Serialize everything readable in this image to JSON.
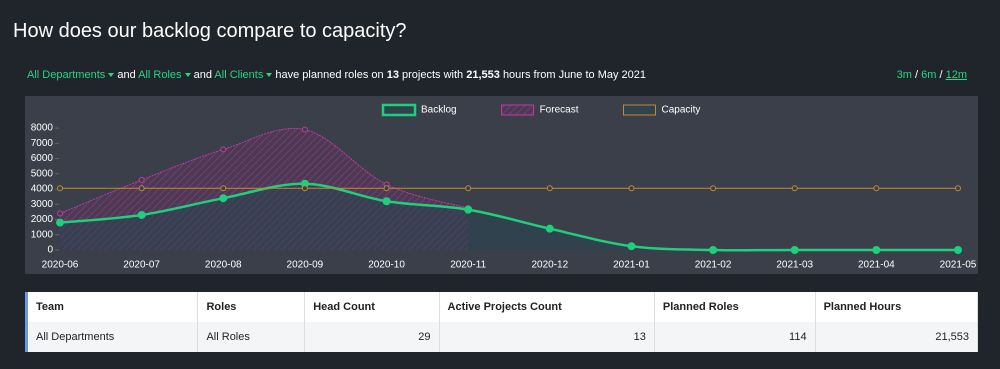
{
  "header": {
    "title": "How does our backlog compare to capacity?"
  },
  "filters": {
    "departments": "All Departments",
    "and_1": "and",
    "roles": "All Roles",
    "and_2": "and",
    "clients": "All Clients",
    "text_1": "have planned roles on",
    "projects": "13",
    "text_2": "projects with",
    "hours": "21,553",
    "text_3": "hours from June to May 2021"
  },
  "ranges": {
    "options": [
      "3m",
      "6m",
      "12m"
    ],
    "separator": "/"
  },
  "chart_data": {
    "type": "line",
    "categories": [
      "2020-06",
      "2020-07",
      "2020-08",
      "2020-09",
      "2020-10",
      "2020-11",
      "2020-12",
      "2021-01",
      "2021-02",
      "2021-03",
      "2021-04",
      "2021-05"
    ],
    "series": [
      {
        "name": "Backlog",
        "color": "#1fcf7c",
        "values": [
          1800,
          2300,
          3400,
          4350,
          3200,
          2650,
          1400,
          250,
          0,
          0,
          0,
          0
        ]
      },
      {
        "name": "Forecast",
        "color": "#c23aa0",
        "values": [
          2400,
          4600,
          6600,
          7900,
          4300,
          2750,
          null,
          null,
          null,
          null,
          null,
          null
        ]
      },
      {
        "name": "Capacity",
        "color": "#c48a2e",
        "values": [
          4050,
          4050,
          4050,
          4050,
          4050,
          4050,
          4050,
          4050,
          4050,
          4050,
          4050,
          4050
        ]
      }
    ],
    "ylim": [
      0,
      8400
    ],
    "yticks": [
      0,
      1000,
      2000,
      3000,
      4000,
      5000,
      6000,
      7000,
      8000
    ],
    "grid": false
  },
  "table": {
    "headers": [
      "Team",
      "Roles",
      "Head Count",
      "Active Projects Count",
      "Planned Roles",
      "Planned Hours"
    ],
    "rows": [
      [
        "All Departments",
        "All Roles",
        "29",
        "13",
        "114",
        "21,553"
      ]
    ]
  }
}
